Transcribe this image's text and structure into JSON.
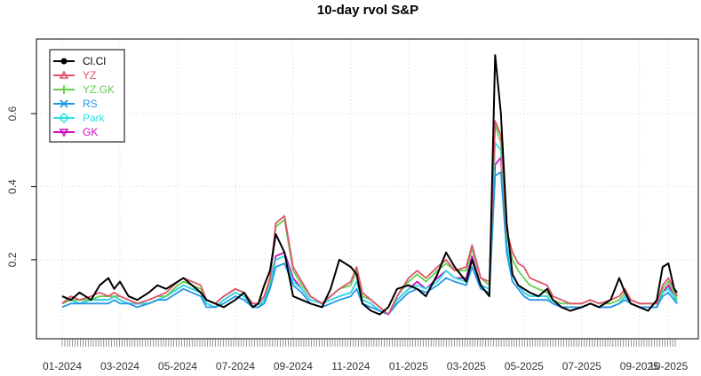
{
  "chart_data": {
    "type": "line",
    "title": "10-day rvol S&P",
    "xlabel": "",
    "ylabel": "",
    "ylim": [
      0.02,
      0.78
    ],
    "yticks": [
      0.2,
      0.4,
      0.6
    ],
    "ytick_labels": [
      "0.2",
      "0.4",
      "0.6"
    ],
    "x_range": [
      0,
      21.6
    ],
    "x_unit": "months since 01-2024",
    "xticks": [
      0,
      2,
      4,
      6,
      8,
      10,
      12,
      14,
      16,
      18,
      20,
      21
    ],
    "xtick_labels": [
      "01-2024",
      "03-2024",
      "05-2024",
      "07-2024",
      "09-2024",
      "11-2024",
      "01-2025",
      "03-2025",
      "05-2025",
      "07-2025",
      "09-2025",
      "10-2025"
    ],
    "grid": true,
    "legend_position": "top-left",
    "series": [
      {
        "name": "Cl.Cl",
        "color": "#000000",
        "marker": "circle",
        "x": [
          0,
          0.3,
          0.6,
          1,
          1.3,
          1.6,
          1.8,
          2,
          2.3,
          2.6,
          3,
          3.3,
          3.6,
          4,
          4.2,
          4.5,
          4.8,
          5,
          5.3,
          5.6,
          6,
          6.3,
          6.6,
          6.8,
          7,
          7.2,
          7.4,
          7.7,
          8,
          8.3,
          8.6,
          9,
          9.3,
          9.6,
          10,
          10.2,
          10.4,
          10.7,
          11,
          11.3,
          11.6,
          12,
          12.3,
          12.6,
          13,
          13.3,
          13.6,
          14,
          14.2,
          14.5,
          14.8,
          15,
          15.2,
          15.4,
          15.6,
          15.8,
          16,
          16.2,
          16.5,
          16.8,
          17,
          17.3,
          17.6,
          18,
          18.3,
          18.6,
          19,
          19.3,
          19.5,
          19.7,
          20,
          20.3,
          20.6,
          20.8,
          21,
          21.2,
          21.3
        ],
        "y": [
          0.1,
          0.09,
          0.11,
          0.09,
          0.13,
          0.15,
          0.12,
          0.14,
          0.1,
          0.09,
          0.11,
          0.13,
          0.12,
          0.14,
          0.15,
          0.13,
          0.11,
          0.09,
          0.08,
          0.07,
          0.09,
          0.11,
          0.07,
          0.08,
          0.13,
          0.17,
          0.27,
          0.22,
          0.1,
          0.09,
          0.08,
          0.07,
          0.12,
          0.2,
          0.18,
          0.16,
          0.08,
          0.06,
          0.05,
          0.07,
          0.12,
          0.13,
          0.12,
          0.1,
          0.16,
          0.22,
          0.18,
          0.14,
          0.2,
          0.13,
          0.1,
          0.76,
          0.6,
          0.3,
          0.16,
          0.13,
          0.12,
          0.11,
          0.1,
          0.12,
          0.09,
          0.07,
          0.06,
          0.07,
          0.08,
          0.07,
          0.09,
          0.15,
          0.11,
          0.08,
          0.07,
          0.06,
          0.09,
          0.18,
          0.19,
          0.12,
          0.11
        ]
      },
      {
        "name": "YZ",
        "color": "#DF536B",
        "marker": "triangle",
        "x": [
          0,
          0.3,
          0.6,
          1,
          1.3,
          1.6,
          1.8,
          2,
          2.3,
          2.6,
          3,
          3.3,
          3.6,
          4,
          4.2,
          4.5,
          4.8,
          5,
          5.3,
          5.6,
          6,
          6.3,
          6.6,
          6.8,
          7,
          7.2,
          7.4,
          7.7,
          8,
          8.3,
          8.6,
          9,
          9.3,
          9.6,
          10,
          10.2,
          10.4,
          10.7,
          11,
          11.3,
          11.6,
          12,
          12.3,
          12.6,
          13,
          13.3,
          13.6,
          14,
          14.2,
          14.5,
          14.8,
          15,
          15.2,
          15.4,
          15.6,
          15.8,
          16,
          16.2,
          16.5,
          16.8,
          17,
          17.3,
          17.6,
          18,
          18.3,
          18.6,
          19,
          19.3,
          19.5,
          19.7,
          20,
          20.3,
          20.6,
          20.8,
          21,
          21.2,
          21.3
        ],
        "y": [
          0.08,
          0.1,
          0.09,
          0.1,
          0.11,
          0.1,
          0.11,
          0.1,
          0.09,
          0.08,
          0.09,
          0.1,
          0.11,
          0.14,
          0.15,
          0.14,
          0.13,
          0.09,
          0.08,
          0.1,
          0.12,
          0.11,
          0.08,
          0.08,
          0.1,
          0.15,
          0.3,
          0.32,
          0.18,
          0.14,
          0.1,
          0.08,
          0.1,
          0.12,
          0.14,
          0.18,
          0.11,
          0.09,
          0.07,
          0.05,
          0.1,
          0.15,
          0.17,
          0.15,
          0.18,
          0.2,
          0.17,
          0.18,
          0.24,
          0.15,
          0.14,
          0.58,
          0.54,
          0.28,
          0.22,
          0.19,
          0.18,
          0.15,
          0.14,
          0.13,
          0.1,
          0.09,
          0.08,
          0.08,
          0.09,
          0.08,
          0.09,
          0.1,
          0.12,
          0.09,
          0.08,
          0.08,
          0.08,
          0.13,
          0.15,
          0.12,
          0.1
        ]
      },
      {
        "name": "YZ.GK",
        "color": "#61D04F",
        "marker": "plus",
        "x": [
          0,
          0.3,
          0.6,
          1,
          1.3,
          1.6,
          1.8,
          2,
          2.3,
          2.6,
          3,
          3.3,
          3.6,
          4,
          4.2,
          4.5,
          4.8,
          5,
          5.3,
          5.6,
          6,
          6.3,
          6.6,
          6.8,
          7,
          7.2,
          7.4,
          7.7,
          8,
          8.3,
          8.6,
          9,
          9.3,
          9.6,
          10,
          10.2,
          10.4,
          10.7,
          11,
          11.3,
          11.6,
          12,
          12.3,
          12.6,
          13,
          13.3,
          13.6,
          14,
          14.2,
          14.5,
          14.8,
          15,
          15.2,
          15.4,
          15.6,
          15.8,
          16,
          16.2,
          16.5,
          16.8,
          17,
          17.3,
          17.6,
          18,
          18.3,
          18.6,
          19,
          19.3,
          19.5,
          19.7,
          20,
          20.3,
          20.6,
          20.8,
          21,
          21.2,
          21.3
        ],
        "y": [
          0.08,
          0.09,
          0.09,
          0.09,
          0.1,
          0.1,
          0.1,
          0.1,
          0.09,
          0.08,
          0.09,
          0.1,
          0.1,
          0.13,
          0.14,
          0.13,
          0.12,
          0.09,
          0.08,
          0.1,
          0.12,
          0.11,
          0.08,
          0.08,
          0.1,
          0.14,
          0.29,
          0.31,
          0.17,
          0.13,
          0.1,
          0.08,
          0.1,
          0.12,
          0.13,
          0.17,
          0.1,
          0.09,
          0.07,
          0.05,
          0.1,
          0.14,
          0.16,
          0.14,
          0.17,
          0.19,
          0.17,
          0.17,
          0.23,
          0.15,
          0.13,
          0.57,
          0.52,
          0.27,
          0.2,
          0.17,
          0.15,
          0.13,
          0.12,
          0.11,
          0.09,
          0.08,
          0.08,
          0.08,
          0.09,
          0.08,
          0.08,
          0.09,
          0.11,
          0.09,
          0.08,
          0.08,
          0.08,
          0.12,
          0.14,
          0.11,
          0.09
        ]
      },
      {
        "name": "RS",
        "color": "#2297E6",
        "marker": "cross",
        "x": [
          0,
          0.3,
          0.6,
          1,
          1.3,
          1.6,
          1.8,
          2,
          2.3,
          2.6,
          3,
          3.3,
          3.6,
          4,
          4.2,
          4.5,
          4.8,
          5,
          5.3,
          5.6,
          6,
          6.3,
          6.6,
          6.8,
          7,
          7.2,
          7.4,
          7.7,
          8,
          8.3,
          8.6,
          9,
          9.3,
          9.6,
          10,
          10.2,
          10.4,
          10.7,
          11,
          11.3,
          11.6,
          12,
          12.3,
          12.6,
          13,
          13.3,
          13.6,
          14,
          14.2,
          14.5,
          14.8,
          15,
          15.2,
          15.4,
          15.6,
          15.8,
          16,
          16.2,
          16.5,
          16.8,
          17,
          17.3,
          17.6,
          18,
          18.3,
          18.6,
          19,
          19.3,
          19.5,
          19.7,
          20,
          20.3,
          20.6,
          20.8,
          21,
          21.2,
          21.3
        ],
        "y": [
          0.07,
          0.08,
          0.08,
          0.08,
          0.08,
          0.08,
          0.09,
          0.08,
          0.08,
          0.07,
          0.08,
          0.09,
          0.09,
          0.11,
          0.12,
          0.11,
          0.1,
          0.07,
          0.07,
          0.08,
          0.1,
          0.09,
          0.07,
          0.07,
          0.08,
          0.12,
          0.18,
          0.19,
          0.13,
          0.11,
          0.08,
          0.07,
          0.08,
          0.09,
          0.1,
          0.12,
          0.08,
          0.07,
          0.06,
          0.05,
          0.08,
          0.11,
          0.12,
          0.11,
          0.13,
          0.15,
          0.14,
          0.13,
          0.18,
          0.12,
          0.11,
          0.43,
          0.44,
          0.22,
          0.14,
          0.12,
          0.1,
          0.09,
          0.09,
          0.09,
          0.08,
          0.07,
          0.07,
          0.07,
          0.08,
          0.07,
          0.07,
          0.08,
          0.09,
          0.08,
          0.07,
          0.07,
          0.07,
          0.1,
          0.11,
          0.09,
          0.08
        ]
      },
      {
        "name": "Park",
        "color": "#28E2E5",
        "marker": "diamond",
        "x": [
          0,
          0.3,
          0.6,
          1,
          1.3,
          1.6,
          1.8,
          2,
          2.3,
          2.6,
          3,
          3.3,
          3.6,
          4,
          4.2,
          4.5,
          4.8,
          5,
          5.3,
          5.6,
          6,
          6.3,
          6.6,
          6.8,
          7,
          7.2,
          7.4,
          7.7,
          8,
          8.3,
          8.6,
          9,
          9.3,
          9.6,
          10,
          10.2,
          10.4,
          10.7,
          11,
          11.3,
          11.6,
          12,
          12.3,
          12.6,
          13,
          13.3,
          13.6,
          14,
          14.2,
          14.5,
          14.8,
          15,
          15.2,
          15.4,
          15.6,
          15.8,
          16,
          16.2,
          16.5,
          16.8,
          17,
          17.3,
          17.6,
          18,
          18.3,
          18.6,
          19,
          19.3,
          19.5,
          19.7,
          20,
          20.3,
          20.6,
          20.8,
          21,
          21.2,
          21.3
        ],
        "y": [
          0.08,
          0.09,
          0.08,
          0.09,
          0.09,
          0.09,
          0.1,
          0.09,
          0.08,
          0.08,
          0.08,
          0.09,
          0.1,
          0.12,
          0.13,
          0.12,
          0.11,
          0.08,
          0.07,
          0.09,
          0.11,
          0.1,
          0.07,
          0.07,
          0.09,
          0.13,
          0.2,
          0.21,
          0.14,
          0.12,
          0.09,
          0.08,
          0.09,
          0.1,
          0.11,
          0.14,
          0.09,
          0.08,
          0.06,
          0.05,
          0.09,
          0.12,
          0.13,
          0.12,
          0.14,
          0.17,
          0.15,
          0.14,
          0.2,
          0.13,
          0.12,
          0.52,
          0.5,
          0.24,
          0.16,
          0.13,
          0.11,
          0.1,
          0.1,
          0.1,
          0.08,
          0.07,
          0.07,
          0.07,
          0.08,
          0.07,
          0.07,
          0.08,
          0.1,
          0.08,
          0.07,
          0.07,
          0.07,
          0.11,
          0.12,
          0.1,
          0.08
        ]
      },
      {
        "name": "GK",
        "color": "#CD0BBC",
        "marker": "triangle-down",
        "x": [
          0,
          0.3,
          0.6,
          1,
          1.3,
          1.6,
          1.8,
          2,
          2.3,
          2.6,
          3,
          3.3,
          3.6,
          4,
          4.2,
          4.5,
          4.8,
          5,
          5.3,
          5.6,
          6,
          6.3,
          6.6,
          6.8,
          7,
          7.2,
          7.4,
          7.7,
          8,
          8.3,
          8.6,
          9,
          9.3,
          9.6,
          10,
          10.2,
          10.4,
          10.7,
          11,
          11.3,
          11.6,
          12,
          12.3,
          12.6,
          13,
          13.3,
          13.6,
          14,
          14.2,
          14.5,
          14.8,
          15,
          15.2,
          15.4,
          15.6,
          15.8,
          16,
          16.2,
          16.5,
          16.8,
          17,
          17.3,
          17.6,
          18,
          18.3,
          18.6,
          19,
          19.3,
          19.5,
          19.7,
          20,
          20.3,
          20.6,
          20.8,
          21,
          21.2,
          21.3
        ],
        "y": [
          0.08,
          0.09,
          0.08,
          0.09,
          0.09,
          0.09,
          0.1,
          0.09,
          0.08,
          0.08,
          0.08,
          0.09,
          0.1,
          0.12,
          0.13,
          0.12,
          0.11,
          0.08,
          0.07,
          0.09,
          0.11,
          0.1,
          0.07,
          0.07,
          0.09,
          0.13,
          0.21,
          0.22,
          0.15,
          0.12,
          0.09,
          0.08,
          0.09,
          0.1,
          0.11,
          0.14,
          0.09,
          0.08,
          0.06,
          0.05,
          0.09,
          0.12,
          0.14,
          0.12,
          0.15,
          0.17,
          0.15,
          0.15,
          0.21,
          0.13,
          0.12,
          0.46,
          0.48,
          0.24,
          0.16,
          0.13,
          0.11,
          0.1,
          0.1,
          0.1,
          0.08,
          0.07,
          0.07,
          0.07,
          0.08,
          0.07,
          0.07,
          0.08,
          0.1,
          0.08,
          0.07,
          0.07,
          0.07,
          0.11,
          0.13,
          0.1,
          0.08
        ]
      }
    ]
  }
}
